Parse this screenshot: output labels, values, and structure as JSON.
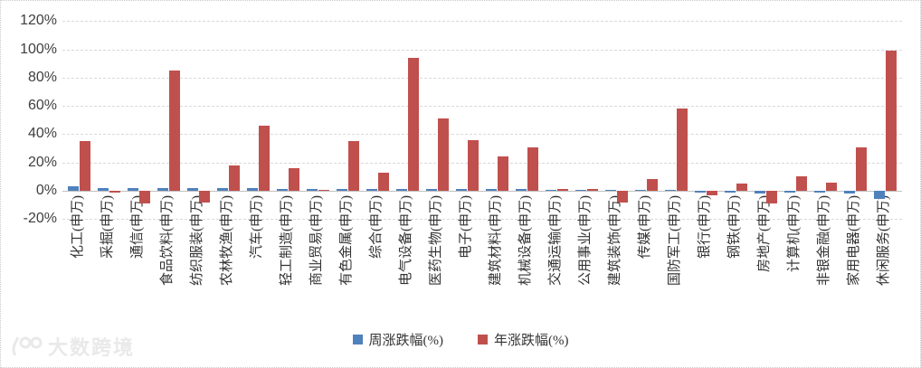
{
  "watermark": {
    "text": "大数跨境"
  },
  "chart_data": {
    "type": "bar",
    "title": "",
    "xlabel": "",
    "ylabel": "",
    "categories": [
      "化工(申万)",
      "采掘(申万)",
      "通信(申万)",
      "食品饮料(申万)",
      "纺织服装(申万)",
      "农林牧渔(申万)",
      "汽车(申万)",
      "轻工制造(申万)",
      "商业贸易(申万)",
      "有色金属(申万)",
      "综合(申万)",
      "电气设备(申万)",
      "医药生物(申万)",
      "电子(申万)",
      "建筑材料(申万)",
      "机械设备(申万)",
      "交通运输(申万)",
      "公用事业(申万)",
      "建筑装饰(申万)",
      "传媒(申万)",
      "国防军工(申万)",
      "银行(申万)",
      "钢铁(申万)",
      "房地产(申万)",
      "计算机(申万)",
      "非银金融(申万)",
      "家用电器(申万)",
      "休闲服务(申万)"
    ],
    "series": [
      {
        "name": "周涨跌幅(%)",
        "color": "#4F81BD",
        "values": [
          3,
          2,
          2,
          2,
          2,
          2,
          2,
          1,
          1,
          1,
          1,
          1,
          1,
          1,
          1,
          1.5,
          0.5,
          0.5,
          0.5,
          0.5,
          0.5,
          -1.5,
          -1.5,
          -2,
          -1.5,
          -1.5,
          -2,
          -5.5
        ]
      },
      {
        "name": "年涨跌幅(%)",
        "color": "#C0504D",
        "values": [
          35,
          -1,
          -9,
          85,
          -8,
          18,
          46,
          16,
          0.3,
          35,
          13,
          94,
          51,
          36,
          24,
          31,
          1.5,
          1,
          -8,
          8,
          58,
          -3,
          5,
          -9,
          10,
          6,
          31,
          99
        ]
      }
    ],
    "ylim": [
      -20,
      120
    ],
    "yticks": [
      120,
      100,
      80,
      60,
      40,
      20,
      0,
      -20
    ],
    "ytick_labels": [
      "120%",
      "100%",
      "80%",
      "60%",
      "40%",
      "20%",
      "0%",
      "-20%"
    ],
    "grid": true,
    "legend_position": "bottom"
  }
}
